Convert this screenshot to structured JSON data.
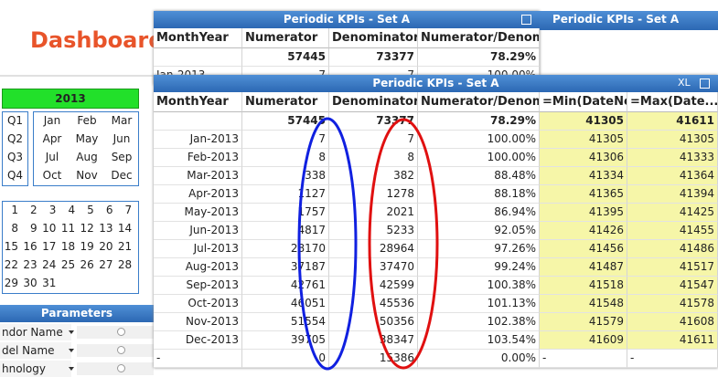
{
  "dashboard_title": "Dashboard",
  "year": "2013",
  "quarters": [
    "Q1",
    "Q2",
    "Q3",
    "Q4"
  ],
  "months": [
    "Jan",
    "Feb",
    "Mar",
    "Apr",
    "May",
    "Jun",
    "Jul",
    "Aug",
    "Sep",
    "Oct",
    "Nov",
    "Dec"
  ],
  "days": [
    1,
    2,
    3,
    4,
    5,
    6,
    7,
    8,
    9,
    10,
    11,
    12,
    13,
    14,
    15,
    16,
    17,
    18,
    19,
    20,
    21,
    22,
    23,
    24,
    25,
    26,
    27,
    28,
    29,
    30,
    31
  ],
  "parameters": {
    "title": "Parameters",
    "fields": [
      "ndor Name",
      "del Name",
      "hnology"
    ]
  },
  "xl_label": "XL",
  "back_table": {
    "title": "Periodic KPIs - Set A",
    "columns": [
      "MonthYear",
      "Numerator",
      "Denominator",
      "Numerator/Denom"
    ],
    "totals": [
      57445,
      73377,
      "78.29%"
    ],
    "rows": [
      [
        "Jan-2013",
        7,
        7,
        "100.00%"
      ]
    ]
  },
  "side_title": "Periodic KPIs - Set A",
  "table": {
    "title": "Periodic KPIs - Set A",
    "columns": [
      "MonthYear",
      "Numerator",
      "Denominator",
      "Numerator/Denom",
      "=Min(DateNo)",
      "=Max(Date..."
    ],
    "totals": [
      57445,
      73377,
      "78.29%",
      41305,
      41611
    ],
    "rows": [
      [
        "Jan-2013",
        7,
        7,
        "100.00%",
        41305,
        41305
      ],
      [
        "Feb-2013",
        8,
        8,
        "100.00%",
        41306,
        41333
      ],
      [
        "Mar-2013",
        338,
        382,
        "88.48%",
        41334,
        41364
      ],
      [
        "Apr-2013",
        1127,
        1278,
        "88.18%",
        41365,
        41394
      ],
      [
        "May-2013",
        1757,
        2021,
        "86.94%",
        41395,
        41425
      ],
      [
        "Jun-2013",
        4817,
        5233,
        "92.05%",
        41426,
        41455
      ],
      [
        "Jul-2013",
        28170,
        28964,
        "97.26%",
        41456,
        41486
      ],
      [
        "Aug-2013",
        37187,
        37470,
        "99.24%",
        41487,
        41517
      ],
      [
        "Sep-2013",
        42761,
        42599,
        "100.38%",
        41518,
        41547
      ],
      [
        "Oct-2013",
        46051,
        45536,
        "101.13%",
        41548,
        41578
      ],
      [
        "Nov-2013",
        51554,
        50356,
        "102.38%",
        41579,
        41608
      ],
      [
        "Dec-2013",
        39705,
        38347,
        "103.54%",
        41609,
        41611
      ],
      [
        "-",
        0,
        15386,
        "0.00%",
        "-",
        "-"
      ]
    ]
  }
}
